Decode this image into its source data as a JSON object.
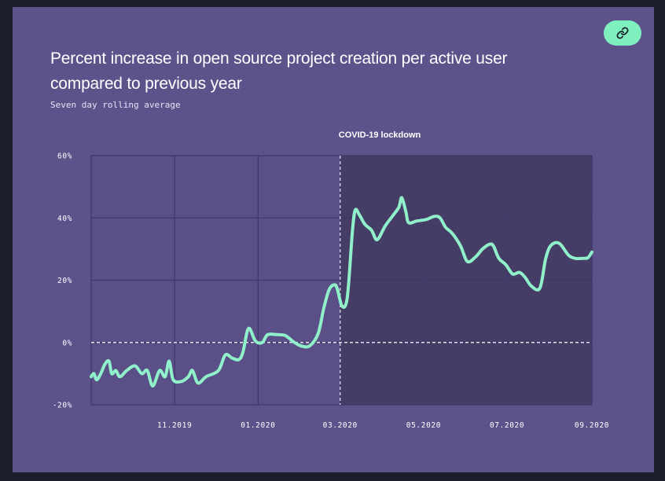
{
  "header": {
    "title": "Percent increase in open source project creation per active user compared to previous year",
    "subtitle": "Seven day rolling average",
    "link_icon": "link-icon"
  },
  "colors": {
    "background": "#5d538b",
    "shaded_region": "#463d67",
    "line": "#8ff0c9",
    "grid": "#3f3768",
    "button": "#7ef0c0"
  },
  "chart_data": {
    "type": "line",
    "title": "Percent increase in open source project creation per active user compared to previous year",
    "subtitle": "Seven day rolling average",
    "xlabel": "",
    "ylabel": "",
    "ylim": [
      -20,
      60
    ],
    "xlim": [
      "2019-09-01",
      "2020-09-01"
    ],
    "yticks": [
      {
        "value": 60,
        "label": "60%"
      },
      {
        "value": 40,
        "label": "40%"
      },
      {
        "value": 20,
        "label": "20%"
      },
      {
        "value": 0,
        "label": "0%"
      },
      {
        "value": -20,
        "label": "-20%"
      }
    ],
    "xticks": [
      {
        "date": "2019-11-01",
        "label": "11.2019"
      },
      {
        "date": "2020-01-01",
        "label": "01.2020"
      },
      {
        "date": "2020-03-01",
        "label": "03.2020"
      },
      {
        "date": "2020-05-01",
        "label": "05.2020"
      },
      {
        "date": "2020-07-01",
        "label": "07.2020"
      },
      {
        "date": "2020-09-01",
        "label": "09.2020"
      }
    ],
    "grid": true,
    "annotations": [
      {
        "label": "COVID-19 lockdown",
        "date": "2020-03-01",
        "style": "dashed-vertical-line",
        "shaded_after": true
      },
      {
        "value": 0,
        "style": "dashed-horizontal-line"
      }
    ],
    "series": [
      {
        "values": [
          [
            "2019-09-01",
            -11
          ],
          [
            "2019-09-03",
            -10
          ],
          [
            "2019-09-05",
            -12
          ],
          [
            "2019-09-08",
            -10
          ],
          [
            "2019-09-11",
            -7
          ],
          [
            "2019-09-14",
            -6
          ],
          [
            "2019-09-16",
            -10
          ],
          [
            "2019-09-19",
            -9
          ],
          [
            "2019-09-22",
            -11
          ],
          [
            "2019-09-27",
            -9
          ],
          [
            "2019-10-03",
            -7.5
          ],
          [
            "2019-10-08",
            -10
          ],
          [
            "2019-10-12",
            -9
          ],
          [
            "2019-10-16",
            -14
          ],
          [
            "2019-10-21",
            -9
          ],
          [
            "2019-10-25",
            -11
          ],
          [
            "2019-10-28",
            -6
          ],
          [
            "2019-10-31",
            -12
          ],
          [
            "2019-11-06",
            -12.5
          ],
          [
            "2019-11-11",
            -11
          ],
          [
            "2019-11-14",
            -9
          ],
          [
            "2019-11-18",
            -13
          ],
          [
            "2019-11-24",
            -11
          ],
          [
            "2019-12-03",
            -9
          ],
          [
            "2019-12-08",
            -4
          ],
          [
            "2019-12-13",
            -5
          ],
          [
            "2019-12-18",
            -5.5
          ],
          [
            "2019-12-21",
            -3
          ],
          [
            "2019-12-25",
            4.5
          ],
          [
            "2019-12-30",
            0.5
          ],
          [
            "2020-01-04",
            0
          ],
          [
            "2020-01-08",
            2.5
          ],
          [
            "2020-01-15",
            2.5
          ],
          [
            "2020-01-21",
            2.2
          ],
          [
            "2020-01-27",
            0.2
          ],
          [
            "2020-02-02",
            -1.2
          ],
          [
            "2020-02-08",
            -1
          ],
          [
            "2020-02-14",
            3
          ],
          [
            "2020-02-18",
            11
          ],
          [
            "2020-02-22",
            17
          ],
          [
            "2020-02-26",
            18.5
          ],
          [
            "2020-02-28",
            17
          ],
          [
            "2020-03-02",
            12
          ],
          [
            "2020-03-05",
            12
          ],
          [
            "2020-03-07",
            18
          ],
          [
            "2020-03-10",
            36
          ],
          [
            "2020-03-12",
            42.5
          ],
          [
            "2020-03-15",
            41
          ],
          [
            "2020-03-19",
            38
          ],
          [
            "2020-03-24",
            36
          ],
          [
            "2020-03-28",
            33
          ],
          [
            "2020-04-03",
            37.5
          ],
          [
            "2020-04-09",
            41
          ],
          [
            "2020-04-13",
            43.5
          ],
          [
            "2020-04-15",
            46.5
          ],
          [
            "2020-04-18",
            42
          ],
          [
            "2020-04-20",
            38.5
          ],
          [
            "2020-04-26",
            39
          ],
          [
            "2020-05-03",
            39.5
          ],
          [
            "2020-05-09",
            40.5
          ],
          [
            "2020-05-13",
            40
          ],
          [
            "2020-05-17",
            37
          ],
          [
            "2020-05-22",
            35
          ],
          [
            "2020-05-28",
            31
          ],
          [
            "2020-06-02",
            26
          ],
          [
            "2020-06-08",
            27.5
          ],
          [
            "2020-06-13",
            30
          ],
          [
            "2020-06-18",
            31.5
          ],
          [
            "2020-06-21",
            31
          ],
          [
            "2020-06-25",
            27
          ],
          [
            "2020-06-30",
            25
          ],
          [
            "2020-07-05",
            22
          ],
          [
            "2020-07-10",
            22.5
          ],
          [
            "2020-07-14",
            21
          ],
          [
            "2020-07-19",
            18
          ],
          [
            "2020-07-25",
            17.5
          ],
          [
            "2020-07-29",
            26.5
          ],
          [
            "2020-08-01",
            30.5
          ],
          [
            "2020-08-05",
            32
          ],
          [
            "2020-08-09",
            31.5
          ],
          [
            "2020-08-15",
            28
          ],
          [
            "2020-08-20",
            27
          ],
          [
            "2020-08-25",
            27
          ],
          [
            "2020-08-29",
            27.2
          ],
          [
            "2020-09-01",
            29
          ]
        ]
      }
    ]
  }
}
